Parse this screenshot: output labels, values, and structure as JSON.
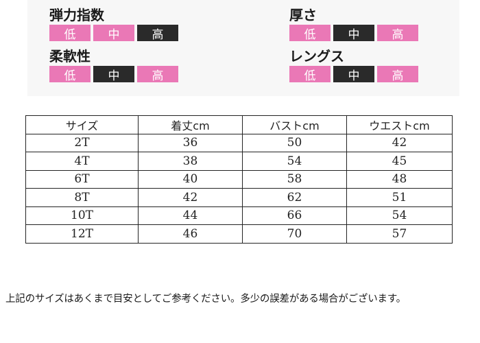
{
  "attributes": {
    "elasticity": {
      "label": "弾力指数",
      "levels": [
        "低",
        "中",
        "高"
      ],
      "selected": 2
    },
    "thickness": {
      "label": "厚さ",
      "levels": [
        "低",
        "中",
        "高"
      ],
      "selected": 1
    },
    "softness": {
      "label": "柔軟性",
      "levels": [
        "低",
        "中",
        "高"
      ],
      "selected": 1
    },
    "length": {
      "label": "レングス",
      "levels": [
        "低",
        "中",
        "高"
      ],
      "selected": 1
    }
  },
  "colors": {
    "level_normal": "#ea78b6",
    "level_selected": "#2a2a2a"
  },
  "size_table": {
    "headers": [
      "サイズ",
      "着丈cm",
      "バストcm",
      "ウエストcm"
    ],
    "rows": [
      [
        "2T",
        "36",
        "50",
        "42"
      ],
      [
        "4T",
        "38",
        "54",
        "45"
      ],
      [
        "6T",
        "40",
        "58",
        "48"
      ],
      [
        "8T",
        "42",
        "62",
        "51"
      ],
      [
        "10T",
        "44",
        "66",
        "54"
      ],
      [
        "12T",
        "46",
        "70",
        "57"
      ]
    ]
  },
  "note": "上記のサイズはあくまで目安としてご参考ください。多少の誤差がある場合がございます。"
}
